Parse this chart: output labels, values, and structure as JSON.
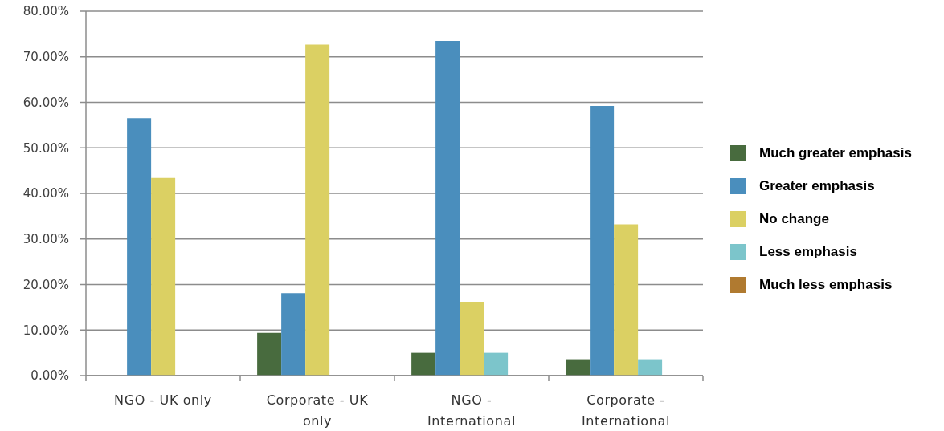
{
  "chart_data": {
    "type": "bar",
    "categories": [
      "NGO - UK only",
      "Corporate - UK only",
      "NGO - International",
      "Corporate - International"
    ],
    "series": [
      {
        "name": "Much greater emphasis",
        "color": "#486b3e",
        "values": [
          0,
          9.4,
          5.0,
          3.6
        ]
      },
      {
        "name": "Greater emphasis",
        "color": "#4a8ebd",
        "values": [
          56.5,
          18.1,
          73.5,
          59.2
        ]
      },
      {
        "name": "No change",
        "color": "#dbd063",
        "values": [
          43.4,
          72.7,
          16.2,
          33.2
        ]
      },
      {
        "name": "Less emphasis",
        "color": "#7cc5cb",
        "values": [
          0,
          0,
          5.0,
          3.6
        ]
      },
      {
        "name": "Much less emphasis",
        "color": "#b07a30",
        "values": [
          0,
          0,
          0,
          0
        ]
      }
    ],
    "ylim": [
      0,
      80
    ],
    "yticks": [
      {
        "value": 0,
        "label": "0.00%"
      },
      {
        "value": 10,
        "label": "10.00%"
      },
      {
        "value": 20,
        "label": "20.00%"
      },
      {
        "value": 30,
        "label": "30.00%"
      },
      {
        "value": 40,
        "label": "40.00%"
      },
      {
        "value": 50,
        "label": "50.00%"
      },
      {
        "value": 60,
        "label": "60.00%"
      },
      {
        "value": 70,
        "label": "70.00%"
      },
      {
        "value": 80,
        "label": "80.00%"
      }
    ],
    "grid": "y",
    "legend": "right"
  }
}
